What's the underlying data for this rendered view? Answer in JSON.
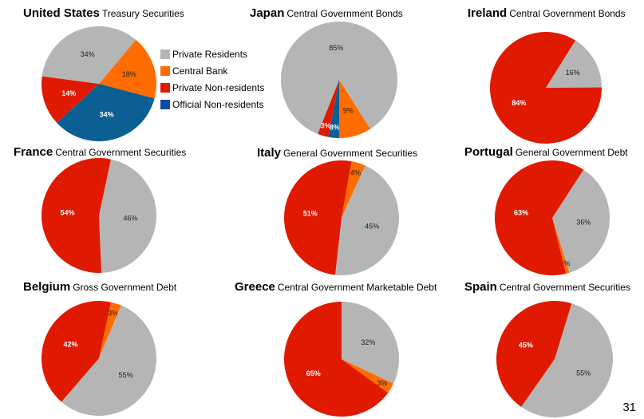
{
  "colors": {
    "private_residents": "#b5b5b5",
    "central_bank": "#ff6c00",
    "private_nonresidents": "#e01a00",
    "official_nonresidents": "#0b5f93",
    "official_nonresidents_legend": "#0b4da2"
  },
  "legend": {
    "items": [
      {
        "key": "private_residents",
        "label": "Private Residents"
      },
      {
        "key": "central_bank",
        "label": "Central Bank"
      },
      {
        "key": "private_nonresidents",
        "label": "Private Non-residents"
      },
      {
        "key": "official_nonresidents",
        "label": "Official Non-residents"
      }
    ]
  },
  "page_number": "31",
  "chart_data": [
    {
      "type": "pie",
      "country": "United States",
      "title": "Treasury Securities",
      "slices": [
        {
          "key": "central_bank",
          "label": "Central Bank",
          "value": 18,
          "display": "18%"
        },
        {
          "key": "official_nonresidents",
          "label": "Official Non-residents",
          "value": 34,
          "display": "34%"
        },
        {
          "key": "private_nonresidents",
          "label": "Private Non-residents",
          "value": 14,
          "display": "14%"
        },
        {
          "key": "private_residents",
          "label": "Private Residents",
          "value": 34,
          "display": "34%"
        }
      ]
    },
    {
      "type": "pie",
      "country": "Japan",
      "title": "Central Government Bonds",
      "slices": [
        {
          "key": "official_nonresidents",
          "label": "Official Non-residents",
          "value": 3,
          "display": "3%"
        },
        {
          "key": "private_nonresidents",
          "label": "Private Non-residents",
          "value": 3,
          "display": "3%"
        },
        {
          "key": "private_residents",
          "label": "Private Residents",
          "value": 85,
          "display": "85%"
        },
        {
          "key": "central_bank",
          "label": "Central Bank",
          "value": 9,
          "display": "9%"
        }
      ]
    },
    {
      "type": "pie",
      "country": "Ireland",
      "title": "Central Government Bonds",
      "slices": [
        {
          "key": "private_residents",
          "label": "Private Residents",
          "value": 16,
          "display": "16%"
        },
        {
          "key": "private_nonresidents",
          "label": "Private Non-residents",
          "value": 84,
          "display": "84%"
        }
      ]
    },
    {
      "type": "pie",
      "country": "France",
      "title": "Central Government Securities",
      "slices": [
        {
          "key": "private_residents",
          "label": "Private Residents",
          "value": 46,
          "display": "46%"
        },
        {
          "key": "private_nonresidents",
          "label": "Private Non-residents",
          "value": 54,
          "display": "54%"
        }
      ]
    },
    {
      "type": "pie",
      "country": "Italy",
      "title": "General Government Securities",
      "slices": [
        {
          "key": "central_bank",
          "label": "Central Bank",
          "value": 4,
          "display": "4%"
        },
        {
          "key": "private_residents",
          "label": "Private Residents",
          "value": 45,
          "display": "45%"
        },
        {
          "key": "private_nonresidents",
          "label": "Private Non-residents",
          "value": 51,
          "display": "51%"
        }
      ]
    },
    {
      "type": "pie",
      "country": "Portugal",
      "title": "General Government Debt",
      "slices": [
        {
          "key": "private_residents",
          "label": "Private Residents",
          "value": 36,
          "display": "36%"
        },
        {
          "key": "central_bank",
          "label": "Central Bank",
          "value": 1,
          "display": "1%"
        },
        {
          "key": "private_nonresidents",
          "label": "Private Non-residents",
          "value": 63,
          "display": "63%"
        }
      ]
    },
    {
      "type": "pie",
      "country": "Belgium",
      "title": "Gross Government Debt",
      "slices": [
        {
          "key": "central_bank",
          "label": "Central Bank",
          "value": 3,
          "display": "3%"
        },
        {
          "key": "private_residents",
          "label": "Private Residents",
          "value": 55,
          "display": "55%"
        },
        {
          "key": "private_nonresidents",
          "label": "Private Non-residents",
          "value": 42,
          "display": "42%"
        }
      ]
    },
    {
      "type": "pie",
      "country": "Greece",
      "title": "Central Government Marketable Debt",
      "slices": [
        {
          "key": "private_residents",
          "label": "Private Residents",
          "value": 32,
          "display": "32%"
        },
        {
          "key": "central_bank",
          "label": "Central Bank",
          "value": 3,
          "display": "3%"
        },
        {
          "key": "private_nonresidents",
          "label": "Private Non-residents",
          "value": 65,
          "display": "65%"
        }
      ]
    },
    {
      "type": "pie",
      "country": "Spain",
      "title": "Central Government Securities",
      "slices": [
        {
          "key": "private_residents",
          "label": "Private Residents",
          "value": 55,
          "display": "55%"
        },
        {
          "key": "private_nonresidents",
          "label": "Private Non-residents",
          "value": 45,
          "display": "45%"
        }
      ]
    }
  ]
}
